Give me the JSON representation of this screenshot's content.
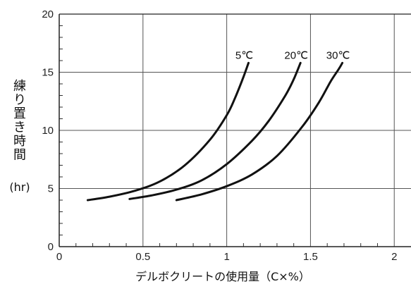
{
  "chart_data": {
    "type": "line",
    "xlabel": "デルボクリートの使用量（C×%）",
    "ylabel": "練り置き時間",
    "ylabel_unit": "(hr)",
    "xlim": [
      0,
      2.1
    ],
    "ylim": [
      0,
      20
    ],
    "xticks": [
      "0",
      "0.5",
      "1",
      "1.5",
      "2"
    ],
    "yticks": [
      "0",
      "5",
      "10",
      "15",
      "20"
    ],
    "grid": true,
    "series": [
      {
        "name": "5℃",
        "x": [
          0.17,
          0.3,
          0.45,
          0.6,
          0.75,
          0.9,
          1.0,
          1.05,
          1.1,
          1.13
        ],
        "y": [
          4.0,
          4.3,
          4.8,
          5.6,
          7.0,
          9.2,
          11.3,
          12.8,
          14.6,
          15.8
        ]
      },
      {
        "name": "20℃",
        "x": [
          0.42,
          0.55,
          0.7,
          0.85,
          1.0,
          1.15,
          1.25,
          1.35,
          1.4,
          1.44
        ],
        "y": [
          4.1,
          4.4,
          4.9,
          5.7,
          7.1,
          9.1,
          10.8,
          13.0,
          14.4,
          15.8
        ]
      },
      {
        "name": "30℃",
        "x": [
          0.7,
          0.85,
          1.0,
          1.15,
          1.3,
          1.45,
          1.55,
          1.62,
          1.67,
          1.69
        ],
        "y": [
          4.0,
          4.5,
          5.2,
          6.2,
          7.8,
          10.3,
          12.4,
          14.2,
          15.3,
          15.8
        ]
      }
    ]
  }
}
